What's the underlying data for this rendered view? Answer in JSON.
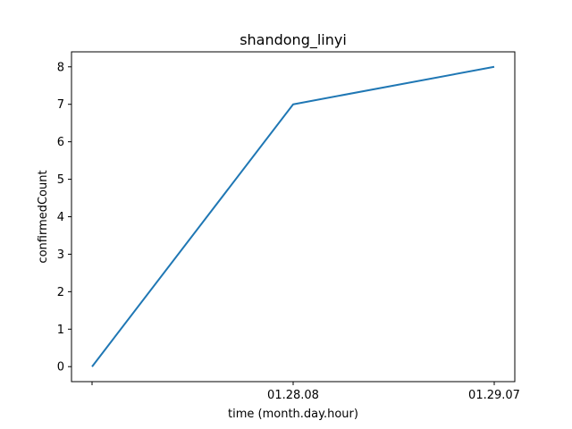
{
  "chart_data": {
    "type": "line",
    "title": "shandong_linyi",
    "xlabel": "time (month.day.hour)",
    "ylabel": "confirmedCount",
    "categories": [
      "",
      "01.28.08",
      "01.29.07"
    ],
    "series": [
      {
        "values": [
          0,
          7,
          8
        ],
        "color": "#1f77b4"
      }
    ],
    "ylim": [
      -0.4,
      8.4
    ],
    "yticks": [
      0,
      1,
      2,
      3,
      4,
      5,
      6,
      7,
      8
    ],
    "grid": false,
    "legend": "none"
  }
}
